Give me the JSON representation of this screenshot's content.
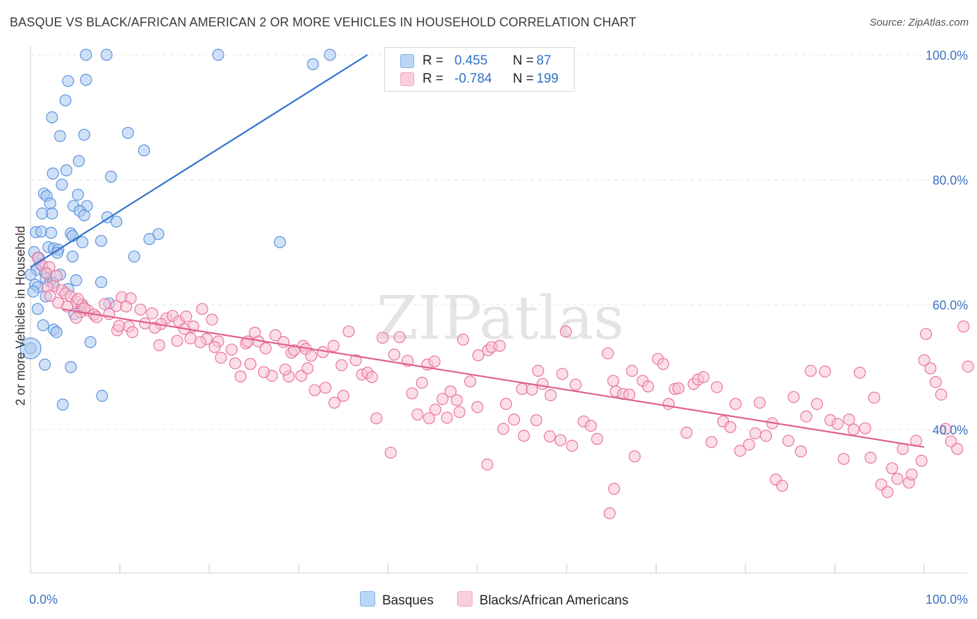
{
  "title": "BASQUE VS BLACK/AFRICAN AMERICAN 2 OR MORE VEHICLES IN HOUSEHOLD CORRELATION CHART",
  "source": "Source: ZipAtlas.com",
  "watermark": "ZIPatlas",
  "legend": {
    "rows": [
      {
        "r_label": "R =",
        "r_value": "0.455",
        "n_label": "N =",
        "n_value": "87",
        "color": "#7eb0ea"
      },
      {
        "r_label": "R =",
        "r_value": "-0.784",
        "n_label": "N =",
        "n_value": "199",
        "color": "#f2a5bf"
      }
    ]
  },
  "bottom_legend": [
    {
      "label": "Basques",
      "color": "#7eb0ea"
    },
    {
      "label": "Blacks/African Americans",
      "color": "#f2a5bf"
    }
  ],
  "chart_data": {
    "type": "scatter",
    "title": "BASQUE VS BLACK/AFRICAN AMERICAN 2 OR MORE VEHICLES IN HOUSEHOLD CORRELATION CHART",
    "xlabel": "",
    "ylabel": "2 or more Vehicles in Household",
    "xlim": [
      0,
      100
    ],
    "ylim": [
      17,
      101
    ],
    "x_tick_labels": [
      "0.0%",
      "100.0%"
    ],
    "y_ticks": [
      40,
      60,
      80,
      100
    ],
    "y_tick_labels": [
      "40.0%",
      "60.0%",
      "80.0%",
      "100.0%"
    ],
    "grid": true,
    "legend_position": "top-center",
    "series": [
      {
        "name": "Basques",
        "color": "#5b93dd",
        "fill": "#a9c9f1",
        "trend": {
          "x": [
            0,
            37.7
          ],
          "y": [
            66,
            100
          ]
        },
        "points": [
          [
            6.2,
            100
          ],
          [
            8.5,
            100
          ],
          [
            21,
            100
          ],
          [
            33.5,
            100
          ],
          [
            31.6,
            98.5
          ],
          [
            4.2,
            95.8
          ],
          [
            6.2,
            96
          ],
          [
            3.9,
            92.7
          ],
          [
            2.4,
            90
          ],
          [
            3.3,
            87
          ],
          [
            6,
            87.2
          ],
          [
            10.9,
            87.5
          ],
          [
            12.7,
            84.7
          ],
          [
            5.4,
            83
          ],
          [
            4,
            81.5
          ],
          [
            2.5,
            81
          ],
          [
            9,
            80.5
          ],
          [
            3.5,
            79.2
          ],
          [
            1.5,
            77.8
          ],
          [
            1.8,
            77.4
          ],
          [
            5.3,
            77.6
          ],
          [
            2.2,
            76.2
          ],
          [
            4.8,
            75.8
          ],
          [
            6.3,
            75.8
          ],
          [
            1.3,
            74.6
          ],
          [
            2.4,
            74.6
          ],
          [
            5.5,
            75
          ],
          [
            6,
            74.3
          ],
          [
            8.6,
            74
          ],
          [
            9.6,
            73.3
          ],
          [
            0.6,
            71.6
          ],
          [
            1.2,
            71.7
          ],
          [
            2.3,
            71.5
          ],
          [
            4.5,
            71.4
          ],
          [
            4.7,
            71
          ],
          [
            14.3,
            71.3
          ],
          [
            13.3,
            70.5
          ],
          [
            7.9,
            70.2
          ],
          [
            5.8,
            70
          ],
          [
            27.9,
            70
          ],
          [
            2,
            69.2
          ],
          [
            2.6,
            69
          ],
          [
            3.1,
            68.8
          ],
          [
            0.4,
            68.4
          ],
          [
            3,
            68.3
          ],
          [
            4.7,
            67.7
          ],
          [
            11.6,
            67.7
          ],
          [
            0.9,
            67.5
          ],
          [
            1,
            66.5
          ],
          [
            0.7,
            65.6
          ],
          [
            1.6,
            65.2
          ],
          [
            0,
            64.8
          ],
          [
            3.3,
            64.8
          ],
          [
            1.7,
            64.2
          ],
          [
            2.2,
            63.6
          ],
          [
            0.5,
            63.2
          ],
          [
            2.5,
            63.5
          ],
          [
            5.1,
            63.9
          ],
          [
            7.9,
            63.6
          ],
          [
            0.8,
            62.8
          ],
          [
            4.2,
            62.5
          ],
          [
            0.3,
            62.1
          ],
          [
            1.7,
            61.3
          ],
          [
            8.8,
            60.2
          ],
          [
            5.7,
            59.9
          ],
          [
            4.9,
            58.5
          ],
          [
            0.8,
            59.3
          ],
          [
            1.4,
            56.7
          ],
          [
            2.6,
            56
          ],
          [
            2.9,
            55.6
          ],
          [
            6.7,
            54
          ],
          [
            0,
            53
          ],
          [
            1.6,
            50.4
          ],
          [
            4.5,
            50
          ],
          [
            8,
            45.4
          ],
          [
            3.6,
            44
          ]
        ]
      },
      {
        "name": "Blacks/African Americans",
        "color": "#e8749d",
        "fill": "#f7c3d4",
        "trend": {
          "x": [
            3.5,
            100
          ],
          "y": [
            59.3,
            37.2
          ]
        },
        "points": [
          [
            0.8,
            67.5
          ],
          [
            1.3,
            66.3
          ],
          [
            2.1,
            66
          ],
          [
            1.8,
            65
          ],
          [
            2.6,
            63
          ],
          [
            3.5,
            62.3
          ],
          [
            3.9,
            61.8
          ],
          [
            4.5,
            61.3
          ],
          [
            5.1,
            60.5
          ],
          [
            5.8,
            60
          ],
          [
            6.4,
            59.1
          ],
          [
            7.1,
            58.4
          ],
          [
            5.6,
            58.8
          ],
          [
            8.3,
            60.1
          ],
          [
            8.8,
            58.5
          ],
          [
            9.6,
            59.8
          ],
          [
            10.2,
            61.2
          ],
          [
            11.2,
            61
          ],
          [
            10.7,
            59.7
          ],
          [
            12.3,
            59.2
          ],
          [
            13.6,
            58.6
          ],
          [
            12.8,
            57
          ],
          [
            11,
            56.5
          ],
          [
            15.2,
            57.8
          ],
          [
            14.6,
            56.9
          ],
          [
            15.9,
            58.2
          ],
          [
            16.6,
            57.3
          ],
          [
            17.4,
            58.1
          ],
          [
            18.2,
            56.5
          ],
          [
            19.2,
            59.3
          ],
          [
            20.3,
            57.6
          ],
          [
            17.9,
            54.6
          ],
          [
            19.7,
            54.5
          ],
          [
            21,
            54.1
          ],
          [
            22.5,
            52.8
          ],
          [
            24.1,
            53.8
          ],
          [
            25.1,
            55.5
          ],
          [
            25.5,
            54.1
          ],
          [
            26.3,
            53
          ],
          [
            27.4,
            55.1
          ],
          [
            28.3,
            54
          ],
          [
            29.2,
            52.3
          ],
          [
            30.5,
            53.4
          ],
          [
            30.8,
            52.9
          ],
          [
            31.4,
            51.8
          ],
          [
            32.7,
            52.4
          ],
          [
            33.9,
            53.4
          ],
          [
            34.8,
            50.3
          ],
          [
            35.6,
            55.7
          ],
          [
            36.4,
            51.1
          ],
          [
            37.1,
            48.8
          ],
          [
            37.7,
            49.1
          ],
          [
            38.2,
            48.4
          ],
          [
            39.4,
            54.7
          ],
          [
            40.7,
            52
          ],
          [
            41.3,
            54.8
          ],
          [
            42.2,
            51
          ],
          [
            42.7,
            45.8
          ],
          [
            43.8,
            47.5
          ],
          [
            44.4,
            50.4
          ],
          [
            45.2,
            50.9
          ],
          [
            46.1,
            44.9
          ],
          [
            47,
            46.1
          ],
          [
            47.7,
            44.7
          ],
          [
            48.4,
            54.4
          ],
          [
            49.2,
            47.7
          ],
          [
            50.1,
            51.9
          ],
          [
            51.2,
            52.7
          ],
          [
            51.6,
            53.2
          ],
          [
            52.5,
            53.4
          ],
          [
            53.2,
            44.1
          ],
          [
            54.1,
            41.6
          ],
          [
            55,
            46.5
          ],
          [
            56.1,
            46.4
          ],
          [
            56.8,
            49.4
          ],
          [
            57.3,
            47.3
          ],
          [
            58.2,
            45.5
          ],
          [
            59.5,
            48.9
          ],
          [
            59.9,
            55.7
          ],
          [
            61,
            47.2
          ],
          [
            61.9,
            41.3
          ],
          [
            62.7,
            40.6
          ],
          [
            63.4,
            38.5
          ],
          [
            64.6,
            52.2
          ],
          [
            65.5,
            46.1
          ],
          [
            65.2,
            47.8
          ],
          [
            66.3,
            45.7
          ],
          [
            67,
            45.6
          ],
          [
            67.6,
            35.7
          ],
          [
            67.3,
            49.4
          ],
          [
            68.5,
            47.8
          ],
          [
            69.1,
            46.9
          ],
          [
            70.2,
            51.3
          ],
          [
            70.8,
            50.5
          ],
          [
            71.4,
            44.1
          ],
          [
            72.1,
            46.5
          ],
          [
            72.5,
            46.6
          ],
          [
            73.4,
            39.5
          ],
          [
            74.2,
            47.3
          ],
          [
            74.7,
            48
          ],
          [
            75.3,
            48.4
          ],
          [
            76.2,
            38
          ],
          [
            76.8,
            46.8
          ],
          [
            77.5,
            41.3
          ],
          [
            78.3,
            40.4
          ],
          [
            78.9,
            44.1
          ],
          [
            79.4,
            36.6
          ],
          [
            80.4,
            37.6
          ],
          [
            81.1,
            39.4
          ],
          [
            81.6,
            44.3
          ],
          [
            82.3,
            39
          ],
          [
            83,
            41
          ],
          [
            83.4,
            32
          ],
          [
            84.1,
            31
          ],
          [
            84.8,
            38.2
          ],
          [
            85.4,
            45.2
          ],
          [
            86.2,
            36.5
          ],
          [
            86.8,
            42.1
          ],
          [
            87.3,
            49.4
          ],
          [
            88,
            44.1
          ],
          [
            88.9,
            49.3
          ],
          [
            89.5,
            41.5
          ],
          [
            90.3,
            40.9
          ],
          [
            91,
            35.3
          ],
          [
            91.6,
            41.6
          ],
          [
            92.1,
            40
          ],
          [
            92.8,
            49.1
          ],
          [
            93.4,
            40.2
          ],
          [
            94,
            35.5
          ],
          [
            94.4,
            45.1
          ],
          [
            95.2,
            31.2
          ],
          [
            95.9,
            30
          ],
          [
            96.4,
            33.8
          ],
          [
            97,
            32.1
          ],
          [
            97.6,
            36.9
          ],
          [
            98.3,
            31.5
          ],
          [
            98.6,
            32.8
          ],
          [
            99.1,
            38.2
          ],
          [
            99.7,
            35
          ],
          [
            100,
            51.1
          ],
          [
            100.2,
            55.3
          ],
          [
            100.7,
            49.8
          ],
          [
            101.3,
            47.6
          ],
          [
            101.9,
            45.6
          ],
          [
            102.4,
            40.1
          ],
          [
            103,
            38.1
          ],
          [
            103.7,
            36.9
          ],
          [
            104.4,
            56.5
          ],
          [
            104.9,
            50.1
          ],
          [
            65.3,
            30.5
          ],
          [
            64.8,
            26.6
          ],
          [
            60.6,
            37.4
          ],
          [
            59.3,
            38.3
          ],
          [
            58.1,
            38.9
          ],
          [
            56.6,
            41.5
          ],
          [
            55.2,
            39
          ],
          [
            52.9,
            40.1
          ],
          [
            51.1,
            34.4
          ],
          [
            50,
            43.6
          ],
          [
            48,
            42.8
          ],
          [
            46.6,
            41.9
          ],
          [
            45.3,
            43.2
          ],
          [
            44.6,
            41.8
          ],
          [
            43.3,
            42.4
          ],
          [
            40.3,
            36.3
          ],
          [
            38.7,
            41.8
          ],
          [
            35,
            45.4
          ],
          [
            34,
            44.3
          ],
          [
            33,
            46.7
          ],
          [
            31.8,
            46.3
          ],
          [
            30.3,
            48.6
          ],
          [
            29.5,
            52.7
          ],
          [
            28.9,
            48.5
          ],
          [
            27,
            48.6
          ],
          [
            26.1,
            49.2
          ],
          [
            23.5,
            48.5
          ],
          [
            22.9,
            50.6
          ],
          [
            24.6,
            50.5
          ],
          [
            21.3,
            51.5
          ],
          [
            20.6,
            53.2
          ],
          [
            19,
            54
          ],
          [
            16.4,
            54.2
          ],
          [
            14.4,
            53.5
          ],
          [
            13.9,
            56.3
          ],
          [
            11.4,
            55.6
          ],
          [
            9.7,
            55.9
          ],
          [
            7.4,
            58
          ],
          [
            6,
            59.4
          ],
          [
            5.3,
            60.9
          ],
          [
            2.9,
            64.6
          ],
          [
            1.9,
            62.8
          ],
          [
            2.2,
            61.4
          ],
          [
            3.1,
            60.3
          ],
          [
            4.1,
            59.7
          ],
          [
            5.1,
            57.9
          ],
          [
            9.9,
            56.6
          ],
          [
            17.2,
            56.1
          ],
          [
            24.3,
            54.1
          ],
          [
            28.5,
            49.6
          ],
          [
            31,
            49.8
          ]
        ]
      }
    ]
  }
}
